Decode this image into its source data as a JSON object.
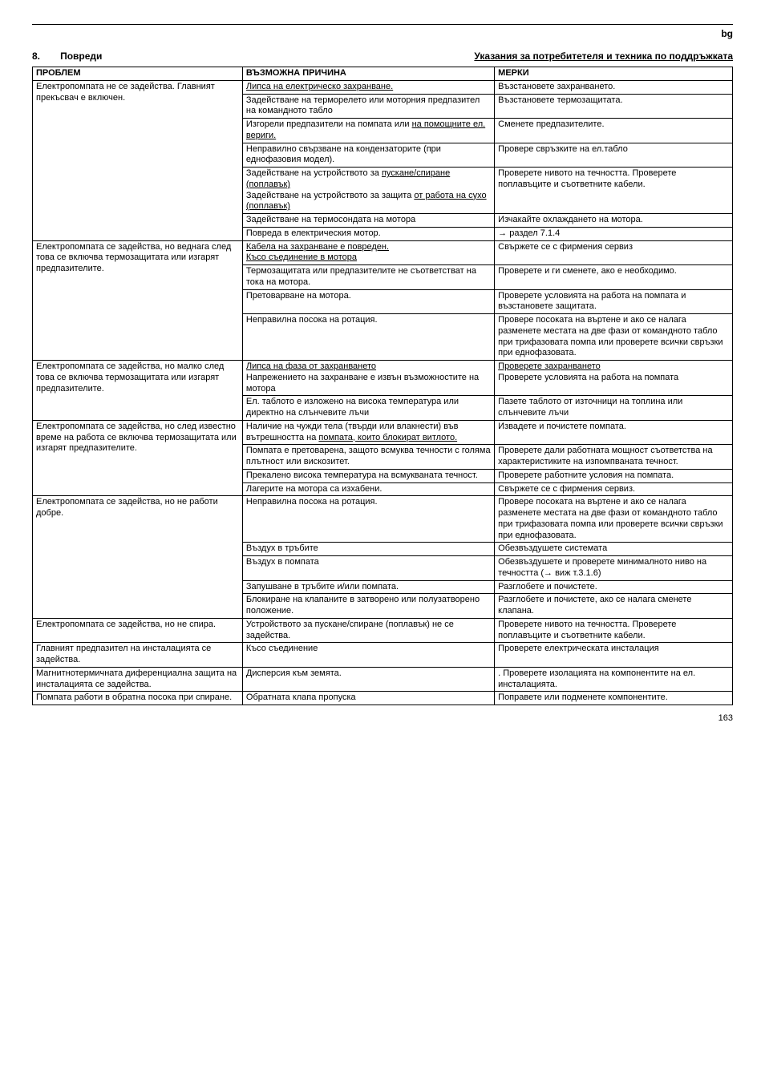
{
  "lang_tag": "bg",
  "section_number": "8.",
  "section_title": "Повреди",
  "section_right": "Указания за потребитетеля и техника по поддръжката",
  "headers": {
    "c1": "ПРОБЛЕМ",
    "c2": "ВЪЗМОЖНА ПРИЧИНА",
    "c3": "МЕРКИ"
  },
  "rows": [
    {
      "p": {
        "text": "Електропомпата не се задейства. Главният прекъсвач е включен.",
        "rowspan": 7
      },
      "c": {
        "text": "Липса на електрическо захранване.",
        "underline": true
      },
      "m": {
        "text": "Възстановете захранването."
      }
    },
    {
      "c": {
        "text": "Задействане на терморелето или моторния предпазител на командното табло"
      },
      "m": {
        "text": "Възстановете  термозащитата."
      }
    },
    {
      "c": {
        "text": "Изгорели предпазители на помпата или <u>на помощните ел. вериги.</u>"
      },
      "m": {
        "text": "Сменете предпазителите."
      }
    },
    {
      "c": {
        "text": "Неправилно свързване на кондензаторите (при еднофазовия модел)."
      },
      "m": {
        "text": "Провере свръзките на ел.табло"
      }
    },
    {
      "c": {
        "text": "Задействане на устройството за <u>пускане/спиране (поплавък)</u><br>Задействане на устройството за защита <u>от работа на сухо (поплавък)</u>"
      },
      "m": {
        "text": "Проверете нивото на течността. Проверете поплавъците и съответните кабели."
      }
    },
    {
      "c": {
        "text": "Задействане на термосондата на мотора"
      },
      "m": {
        "text": "Изчакайте охлаждането на мотора."
      }
    },
    {
      "c": {
        "text": "Повреда в електрическия мотор."
      },
      "m": {
        "text": "→ раздел  7.1.4"
      }
    },
    {
      "p": {
        "text": "Електропомпата се задейства, но веднага след това се включва термозащитата или изгарят предпазителите.",
        "rowspan": 4
      },
      "c": {
        "text": "<u>Кабела на захранване е повреден.</u><br><u>Късо съединение в мотора</u>"
      },
      "m": {
        "text": "Свържете се с фирмения сервиз"
      }
    },
    {
      "c": {
        "text": "Термозащитата или предпазителите не съответстват на тока на мотора."
      },
      "m": {
        "text": "Проверете и ги сменете, ако е необходимо."
      }
    },
    {
      "c": {
        "text": "Претоварване на мотора."
      },
      "m": {
        "text": "Проверете условията на работа на помпата и  възстановете защитата."
      }
    },
    {
      "c": {
        "text": "Неправилна посока на ротация."
      },
      "m": {
        "text": "Провере посоката на въртене и ако се налага разменете местата на две фази от командното табло при трифазовата  помпа или проверете всички свръзки при еднофазовата."
      }
    },
    {
      "p": {
        "text": "Електропомпата се задейства, но малко след това се включва термозащитата или изгарят предпазителите.",
        "rowspan": 2
      },
      "c": {
        "text": "<u>Липса на фаза от захранването</u><br>Напрежението на захранване е извън възможностите на мотора"
      },
      "m": {
        "text": "<u>Проверете захранването</u><br>Проверете условията на работа на помпата"
      }
    },
    {
      "c": {
        "text": "Ел. таблото е изложено  на висока температура или директно на слънчевите лъчи"
      },
      "m": {
        "text": "Пазете таблото от източници на топлина или слънчевите лъчи"
      }
    },
    {
      "p": {
        "text": "Електропомпата се задейства, но след известно време на работа се включва термозащитата или изгарят предпазителите.",
        "rowspan": 4
      },
      "c": {
        "text": "Наличие на чужди тела (твърди или влакнести) във вътрешността на <u>помпата, които блокират витлото.</u>"
      },
      "m": {
        "text": "Извадете и почистете помпата."
      }
    },
    {
      "c": {
        "text": "Помпата е претоварена, защото всмуква течности с голяма плътност или вискозитет."
      },
      "m": {
        "text": "Проверете дали работната мощност съответства на характеристиките на изпомпваната течност."
      }
    },
    {
      "c": {
        "text": "Прекалено висока температура на всмукваната течност."
      },
      "m": {
        "text": "Проверете работните условия на помпата."
      }
    },
    {
      "c": {
        "text": "Лагерите на мотора са изхабени."
      },
      "m": {
        "text": "Свържете се с фирмения сервиз."
      }
    },
    {
      "p": {
        "text": "Електропомпата се задейства, но не работи добре.",
        "rowspan": 5
      },
      "c": {
        "text": "Неправилна посока на ротация."
      },
      "m": {
        "text": "Провере посоката на въртене и ако се налага разменете местата на две фази от командното табло при трифазовата  помпа или проверете всички свръзки при еднофазовата."
      }
    },
    {
      "c": {
        "text": "Въздух в тръбите"
      },
      "m": {
        "text": "Обезвъздушете системата"
      }
    },
    {
      "c": {
        "text": "Въздух в помпата"
      },
      "m": {
        "text": "Обезвъздушете и проверете минималното ниво на течността (→ виж  т.3.1.6)"
      }
    },
    {
      "c": {
        "text": "Запушване в тръбите и/или помпата."
      },
      "m": {
        "text": "Разглобете и почистете."
      }
    },
    {
      "c": {
        "text": "Блокиране на клапаните в затворено или полузатворено положение."
      },
      "m": {
        "text": "Разглобете и почистете, ако се налага сменете клапана."
      }
    },
    {
      "p": {
        "text": "Електропомпата се задейства, но не спира."
      },
      "c": {
        "text": "Устройството за пускане/спиране (поплавък) не се задейства."
      },
      "m": {
        "text": "Проверете нивото на течността. Проверете поплавъците и съответните кабели."
      }
    },
    {
      "p": {
        "text": "Главният предпазител на инсталацията се  задейства."
      },
      "c": {
        "text": "Късо съединение"
      },
      "m": {
        "text": "Проверете електрическата инсталация"
      }
    },
    {
      "p": {
        "text": "Магнитнотермичната диференциална защита на инсталацията се задейства."
      },
      "c": {
        "text": "Дисперсия към земята."
      },
      "m": {
        "text": ". Проверете изолацията на компонентите на ел. инсталацията."
      }
    },
    {
      "p": {
        "text": "Помпата работи в обратна посока при спиране."
      },
      "c": {
        "text": "Обратната клапа пропуска"
      },
      "m": {
        "text": "Поправете или подменете компонентите."
      }
    }
  ],
  "page_number": "163"
}
